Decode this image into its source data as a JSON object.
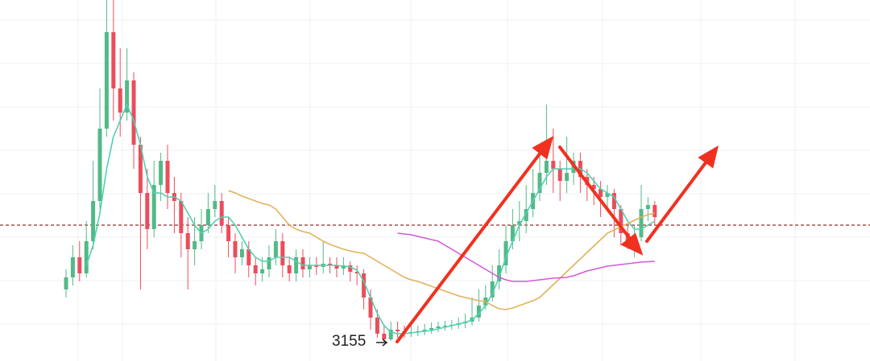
{
  "chart_data": {
    "type": "candlestick",
    "ylim": [
      2915,
      7405
    ],
    "ygrid": [
      7155,
      6615,
      6075,
      5535,
      4995,
      4455,
      3915,
      3375
    ],
    "reference_line": 4605,
    "up_color": "#53b987",
    "down_color": "#eb4d5c",
    "low_label": 3155,
    "open": [
      3805,
      3955,
      4205,
      4005,
      4405,
      4905,
      5805,
      7005,
      6305,
      6005,
      6405,
      5605,
      5005,
      4555,
      5105,
      5405,
      5005,
      4905,
      4505,
      4305,
      4405,
      4605,
      4805,
      4905,
      4605,
      4405,
      4205,
      4305,
      4105,
      4005,
      4055,
      4205,
      4405,
      4105,
      4005,
      4205,
      4055,
      4105,
      4085,
      4125,
      4105,
      4065,
      4105,
      4025,
      4005,
      3705,
      3455,
      3255,
      3185,
      3305,
      3285,
      3265,
      3275,
      3285,
      3305,
      3325,
      3345,
      3355,
      3365,
      3385,
      3405,
      3455,
      3605,
      3705,
      3905,
      4105,
      4405,
      4605,
      4655,
      4805,
      5005,
      5255,
      5405,
      5305,
      5155,
      5255,
      5405,
      5205,
      5105,
      5055,
      4955,
      5005,
      4805,
      4505,
      4405,
      4455,
      4805,
      4855
    ],
    "high": [
      4055,
      4355,
      4405,
      4655,
      5405,
      6305,
      7405,
      7405,
      6805,
      6805,
      6505,
      5705,
      5305,
      5405,
      5505,
      5605,
      5205,
      5005,
      4705,
      4705,
      4805,
      5005,
      5105,
      5005,
      4705,
      4505,
      4405,
      4405,
      4205,
      4205,
      4355,
      4555,
      4505,
      4205,
      4305,
      4305,
      4205,
      4205,
      4405,
      4205,
      4205,
      4205,
      4155,
      4105,
      4055,
      3805,
      3555,
      3355,
      3405,
      3405,
      3355,
      3355,
      3355,
      3375,
      3395,
      3405,
      3415,
      3425,
      3455,
      3505,
      3705,
      3805,
      3855,
      4105,
      4305,
      4605,
      4805,
      4905,
      5105,
      5305,
      5505,
      6105,
      5805,
      5405,
      5705,
      5505,
      5505,
      5305,
      5205,
      5155,
      5105,
      5055,
      4855,
      4605,
      4605,
      5105,
      4955,
      4905
    ],
    "low": [
      3705,
      3855,
      3905,
      3955,
      4305,
      4805,
      5705,
      5905,
      5705,
      5905,
      5305,
      3805,
      4305,
      4455,
      4905,
      4805,
      4505,
      4205,
      3805,
      4105,
      4305,
      4505,
      4705,
      4505,
      4205,
      4005,
      4105,
      3955,
      3855,
      3905,
      3955,
      4105,
      3955,
      3905,
      3905,
      3955,
      3955,
      3985,
      4005,
      4005,
      3955,
      3985,
      3905,
      3855,
      3555,
      3305,
      3205,
      3155,
      3165,
      3205,
      3205,
      3215,
      3225,
      3235,
      3255,
      3275,
      3295,
      3305,
      3315,
      3325,
      3355,
      3405,
      3555,
      3655,
      3805,
      4005,
      4305,
      4405,
      4505,
      4705,
      4905,
      5105,
      5005,
      4905,
      5005,
      5105,
      5005,
      4905,
      4855,
      4705,
      4805,
      4455,
      4355,
      4305,
      4205,
      4405,
      4655,
      4605
    ],
    "close": [
      3955,
      4205,
      4005,
      4405,
      4905,
      5805,
      7005,
      6305,
      6005,
      6405,
      5605,
      5005,
      4555,
      5105,
      5405,
      5005,
      4905,
      4505,
      4305,
      4405,
      4605,
      4805,
      4905,
      4605,
      4405,
      4205,
      4305,
      4105,
      4005,
      4055,
      4205,
      4405,
      4105,
      4005,
      4205,
      4055,
      4105,
      4085,
      4125,
      4105,
      4065,
      4105,
      4025,
      4005,
      3705,
      3455,
      3255,
      3185,
      3305,
      3285,
      3265,
      3275,
      3285,
      3305,
      3325,
      3345,
      3355,
      3365,
      3385,
      3405,
      3455,
      3605,
      3705,
      3905,
      4105,
      4405,
      4605,
      4655,
      4805,
      5005,
      5255,
      5405,
      5305,
      5155,
      5255,
      5405,
      5205,
      5105,
      5055,
      4955,
      5005,
      4805,
      4505,
      4405,
      4455,
      4805,
      4855,
      4705
    ],
    "series": [
      {
        "color": "#4fd1b0",
        "values": [
          null,
          null,
          null,
          4105,
          4355,
          4755,
          5305,
          5705,
          5905,
          6105,
          5905,
          5605,
          5205,
          5005,
          5005,
          4955,
          4955,
          4905,
          4755,
          4605,
          4505,
          4555,
          4655,
          4705,
          4705,
          4605,
          4455,
          4305,
          4205,
          4155,
          4155,
          4205,
          4205,
          4205,
          4155,
          4105,
          4105,
          4105,
          4105,
          4105,
          4105,
          4095,
          4085,
          4045,
          3905,
          3705,
          3505,
          3355,
          3275,
          3255,
          3255,
          3265,
          3275,
          3285,
          3295,
          3315,
          3335,
          3355,
          3375,
          3395,
          3425,
          3505,
          3605,
          3755,
          3955,
          4205,
          4405,
          4605,
          4755,
          4905,
          5055,
          5205,
          5305,
          5305,
          5305,
          5305,
          5305,
          5255,
          5155,
          5055,
          5005,
          4955,
          4805,
          4655,
          4555,
          4555,
          4605,
          4655
        ]
      },
      {
        "color": "#e0b35a",
        "values": [
          null,
          null,
          null,
          null,
          null,
          null,
          null,
          null,
          null,
          null,
          null,
          null,
          null,
          null,
          null,
          null,
          null,
          null,
          null,
          null,
          null,
          null,
          null,
          null,
          5035,
          5005,
          4965,
          4935,
          4905,
          4875,
          4855,
          4805,
          4705,
          4605,
          4555,
          4525,
          4505,
          4455,
          4405,
          4365,
          4335,
          4305,
          4285,
          4265,
          4255,
          4205,
          4155,
          4105,
          4055,
          4005,
          3955,
          3925,
          3905,
          3875,
          3845,
          3815,
          3785,
          3755,
          3725,
          3705,
          3685,
          3665,
          3655,
          3605,
          3565,
          3555,
          3575,
          3605,
          3635,
          3665,
          3705,
          3785,
          3865,
          3945,
          4025,
          4105,
          4185,
          4265,
          4345,
          4425,
          4505,
          4545,
          4585,
          4625,
          4665,
          4705,
          4735,
          4755
        ]
      },
      {
        "color": "#d45ad8",
        "values": [
          null,
          null,
          null,
          null,
          null,
          null,
          null,
          null,
          null,
          null,
          null,
          null,
          null,
          null,
          null,
          null,
          null,
          null,
          null,
          null,
          null,
          null,
          null,
          null,
          null,
          null,
          null,
          null,
          null,
          null,
          null,
          null,
          null,
          null,
          null,
          null,
          null,
          null,
          null,
          null,
          null,
          null,
          null,
          null,
          null,
          null,
          null,
          null,
          null,
          4505,
          4495,
          4485,
          4465,
          4445,
          4425,
          4405,
          4355,
          4305,
          4255,
          4205,
          4155,
          4105,
          4055,
          4005,
          3955,
          3925,
          3905,
          3905,
          3905,
          3915,
          3925,
          3935,
          3945,
          3950,
          3955,
          3975,
          4005,
          4035,
          4055,
          4075,
          4095,
          4105,
          4115,
          4125,
          4135,
          4145,
          4150,
          4155
        ]
      }
    ]
  }
}
